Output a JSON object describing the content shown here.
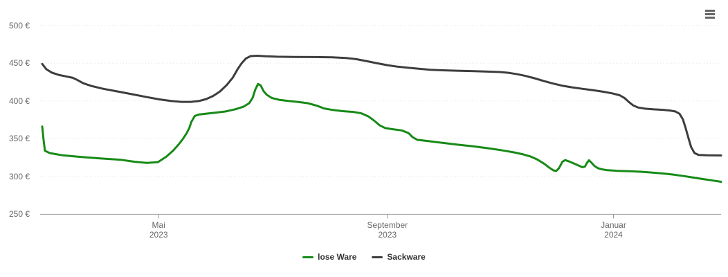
{
  "page": {
    "background": "#ffffff"
  },
  "toolbar": {
    "menu_icon": "hamburger-menu"
  },
  "chart_data": {
    "type": "line",
    "title": "",
    "xlabel": "",
    "ylabel": "",
    "ylim": [
      250,
      500
    ],
    "y_ticks": [
      500,
      450,
      400,
      350,
      300,
      250
    ],
    "y_tick_suffix": " €",
    "grid": "horizontal-dotted",
    "legend_position": "bottom-center",
    "axis_color": "#999999",
    "gridline_color": "#e4e4e4",
    "label_color": "#666666",
    "legend_text_color": "#333333",
    "x_unit": "fraction-of-time-axis",
    "x_ticks": [
      {
        "label": "Mai",
        "sublabel": "2023",
        "pos": 0.174
      },
      {
        "label": "September",
        "sublabel": "2023",
        "pos": 0.51
      },
      {
        "label": "Januar",
        "sublabel": "2024",
        "pos": 0.842
      }
    ],
    "series": [
      {
        "name": "lose Ware",
        "color": "#178a17",
        "points": [
          [
            0.003,
            366
          ],
          [
            0.005,
            349
          ],
          [
            0.007,
            334
          ],
          [
            0.014,
            331
          ],
          [
            0.033,
            328
          ],
          [
            0.058,
            326
          ],
          [
            0.088,
            324
          ],
          [
            0.119,
            322
          ],
          [
            0.139,
            319.5
          ],
          [
            0.157,
            318
          ],
          [
            0.173,
            319
          ],
          [
            0.185,
            326
          ],
          [
            0.195,
            334
          ],
          [
            0.203,
            342
          ],
          [
            0.209,
            349
          ],
          [
            0.215,
            357
          ],
          [
            0.219,
            364
          ],
          [
            0.222,
            372
          ],
          [
            0.227,
            380
          ],
          [
            0.233,
            382
          ],
          [
            0.243,
            383
          ],
          [
            0.258,
            384.5
          ],
          [
            0.272,
            386
          ],
          [
            0.287,
            389
          ],
          [
            0.299,
            392.5
          ],
          [
            0.307,
            397
          ],
          [
            0.312,
            404
          ],
          [
            0.316,
            415
          ],
          [
            0.32,
            422.5
          ],
          [
            0.324,
            420.5
          ],
          [
            0.328,
            413
          ],
          [
            0.333,
            408
          ],
          [
            0.34,
            404
          ],
          [
            0.351,
            401.5
          ],
          [
            0.364,
            400
          ],
          [
            0.378,
            398.7
          ],
          [
            0.393,
            397
          ],
          [
            0.407,
            393.5
          ],
          [
            0.417,
            390
          ],
          [
            0.43,
            388
          ],
          [
            0.444,
            386.5
          ],
          [
            0.459,
            385.5
          ],
          [
            0.472,
            383.5
          ],
          [
            0.482,
            379.5
          ],
          [
            0.491,
            373.5
          ],
          [
            0.499,
            367.5
          ],
          [
            0.507,
            364
          ],
          [
            0.518,
            362.5
          ],
          [
            0.531,
            361
          ],
          [
            0.541,
            357.5
          ],
          [
            0.547,
            352
          ],
          [
            0.554,
            348.5
          ],
          [
            0.569,
            347
          ],
          [
            0.591,
            344.5
          ],
          [
            0.614,
            342
          ],
          [
            0.637,
            339.8
          ],
          [
            0.661,
            337
          ],
          [
            0.679,
            334.5
          ],
          [
            0.695,
            332
          ],
          [
            0.708,
            329.5
          ],
          [
            0.72,
            326.5
          ],
          [
            0.73,
            322.5
          ],
          [
            0.74,
            317
          ],
          [
            0.748,
            311.5
          ],
          [
            0.754,
            308
          ],
          [
            0.758,
            307.3
          ],
          [
            0.762,
            311
          ],
          [
            0.767,
            319.5
          ],
          [
            0.771,
            321.7
          ],
          [
            0.778,
            319.5
          ],
          [
            0.787,
            316
          ],
          [
            0.796,
            312.3
          ],
          [
            0.8,
            313
          ],
          [
            0.803,
            318
          ],
          [
            0.806,
            321.5
          ],
          [
            0.81,
            318
          ],
          [
            0.814,
            314
          ],
          [
            0.819,
            311
          ],
          [
            0.825,
            309.5
          ],
          [
            0.833,
            308.3
          ],
          [
            0.848,
            307.5
          ],
          [
            0.866,
            307
          ],
          [
            0.884,
            306.2
          ],
          [
            0.901,
            305
          ],
          [
            0.917,
            303.7
          ],
          [
            0.931,
            302.3
          ],
          [
            0.945,
            300.6
          ],
          [
            0.959,
            298.6
          ],
          [
            0.974,
            296.6
          ],
          [
            0.988,
            294.6
          ],
          [
            1,
            293
          ]
        ]
      },
      {
        "name": "Sackware",
        "color": "#3d3d3d",
        "points": [
          [
            0.003,
            449
          ],
          [
            0.009,
            442
          ],
          [
            0.017,
            437.5
          ],
          [
            0.027,
            434.5
          ],
          [
            0.038,
            432.5
          ],
          [
            0.048,
            430.5
          ],
          [
            0.055,
            427.5
          ],
          [
            0.063,
            423.5
          ],
          [
            0.075,
            419.8
          ],
          [
            0.093,
            416
          ],
          [
            0.114,
            412.5
          ],
          [
            0.134,
            409
          ],
          [
            0.154,
            405.5
          ],
          [
            0.175,
            402
          ],
          [
            0.193,
            399.8
          ],
          [
            0.207,
            398.7
          ],
          [
            0.221,
            398.7
          ],
          [
            0.234,
            400
          ],
          [
            0.244,
            402.5
          ],
          [
            0.254,
            406.5
          ],
          [
            0.264,
            412.5
          ],
          [
            0.274,
            421
          ],
          [
            0.283,
            431
          ],
          [
            0.29,
            442
          ],
          [
            0.296,
            450
          ],
          [
            0.302,
            456
          ],
          [
            0.309,
            459.3
          ],
          [
            0.319,
            459.8
          ],
          [
            0.332,
            459
          ],
          [
            0.348,
            458.5
          ],
          [
            0.373,
            458.2
          ],
          [
            0.403,
            458
          ],
          [
            0.429,
            457.7
          ],
          [
            0.449,
            456.8
          ],
          [
            0.464,
            455.3
          ],
          [
            0.48,
            452.5
          ],
          [
            0.495,
            449.8
          ],
          [
            0.51,
            447.3
          ],
          [
            0.525,
            445.3
          ],
          [
            0.541,
            443.8
          ],
          [
            0.556,
            442.5
          ],
          [
            0.573,
            441.3
          ],
          [
            0.591,
            440.5
          ],
          [
            0.612,
            440
          ],
          [
            0.637,
            439.4
          ],
          [
            0.657,
            438.8
          ],
          [
            0.675,
            438.2
          ],
          [
            0.689,
            437
          ],
          [
            0.701,
            435.3
          ],
          [
            0.713,
            433
          ],
          [
            0.726,
            430
          ],
          [
            0.739,
            426.5
          ],
          [
            0.752,
            423.3
          ],
          [
            0.766,
            420.3
          ],
          [
            0.781,
            418
          ],
          [
            0.797,
            416
          ],
          [
            0.813,
            414
          ],
          [
            0.828,
            412
          ],
          [
            0.84,
            410
          ],
          [
            0.851,
            407.5
          ],
          [
            0.858,
            404
          ],
          [
            0.864,
            399
          ],
          [
            0.871,
            394
          ],
          [
            0.878,
            391.3
          ],
          [
            0.888,
            389.8
          ],
          [
            0.901,
            388.8
          ],
          [
            0.915,
            388.2
          ],
          [
            0.925,
            387.3
          ],
          [
            0.933,
            386
          ],
          [
            0.939,
            383
          ],
          [
            0.944,
            375.5
          ],
          [
            0.948,
            364
          ],
          [
            0.952,
            351
          ],
          [
            0.956,
            339
          ],
          [
            0.961,
            331
          ],
          [
            0.967,
            328.5
          ],
          [
            0.98,
            328
          ],
          [
            1,
            327.8
          ]
        ]
      }
    ]
  }
}
